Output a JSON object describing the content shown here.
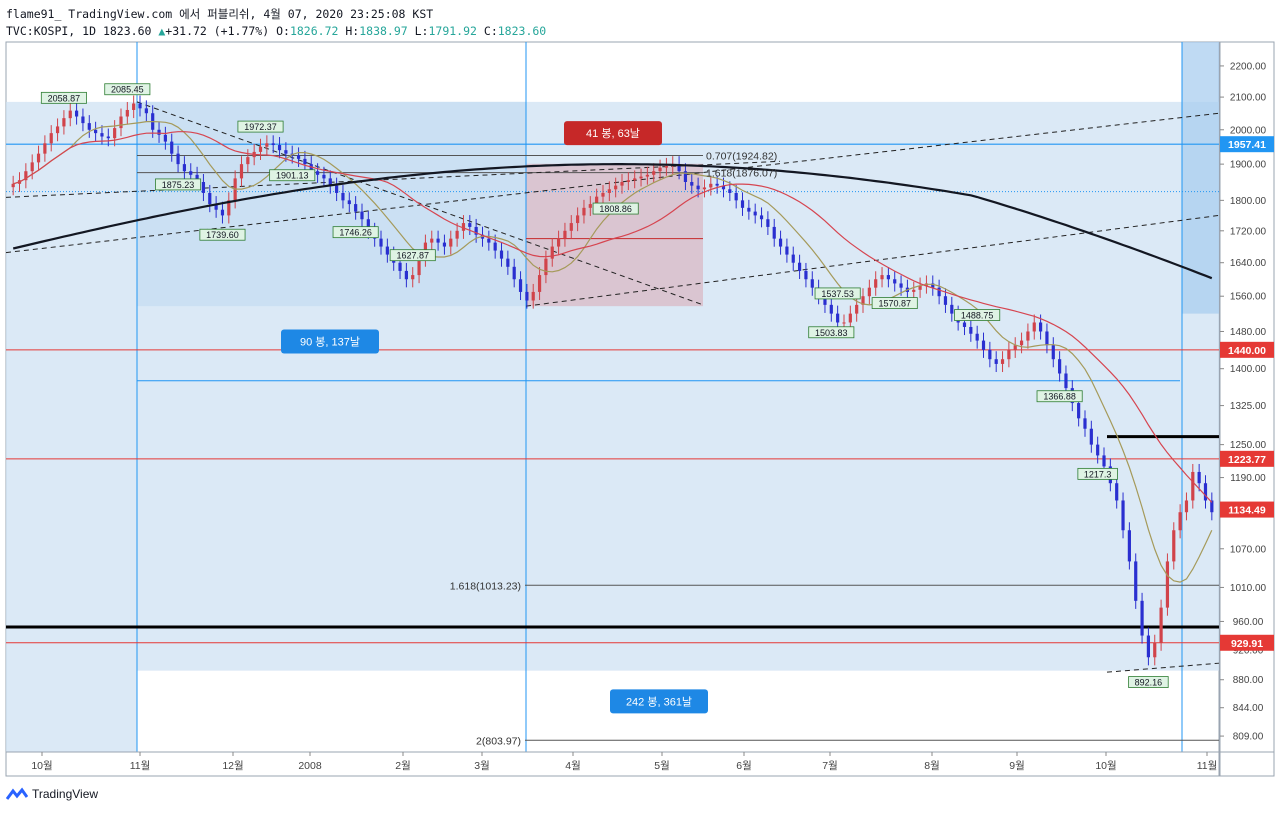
{
  "header": {
    "line1": "flame91_ TradingView.com 에서 퍼블리쉬, 4월 07, 2020 23:25:08 KST",
    "symbol": "TVC:KOSPI, 1D",
    "last": "1823.60",
    "change": "+31.72 (+1.77%)",
    "o_label": "O:",
    "o": "1826.72",
    "h_label": "H:",
    "h": "1838.97",
    "l_label": "L:",
    "l": "1791.92",
    "c_label": "C:",
    "c": "1823.60"
  },
  "footer": {
    "brand": "TradingView"
  },
  "colors": {
    "up": "#d1434a",
    "down": "#2a2fd0",
    "zone_blue": "#cfe1f3",
    "zone_pink": "#d9b8c4",
    "ma_long": "#131722",
    "ma_mid": "#d64550",
    "ma_short": "#a59a5a",
    "axis_text": "#444"
  },
  "chart_data": {
    "type": "candlestick",
    "y_scale": "log",
    "ylim": [
      790,
      2280
    ],
    "y_ticks": [
      809,
      844,
      880,
      920,
      960,
      1010,
      1070,
      1130,
      1190,
      1250,
      1325,
      1400,
      1480,
      1560,
      1640,
      1720,
      1800,
      1900,
      2000,
      2100,
      2200
    ],
    "y_tick_labels": [
      "809.00",
      "844.00",
      "880.00",
      "920.00",
      "960.00",
      "1010.00",
      "1070.00",
      "1130.00",
      "1190.00",
      "1250.00",
      "1325.00",
      "1400.00",
      "1480.00",
      "1560.00",
      "1640.00",
      "1720.00",
      "1800.00",
      "1900.00",
      "2000.00",
      "2100.00",
      "2200.00"
    ],
    "x_labels": [
      "10월",
      "11월",
      "12월",
      "2008",
      "2월",
      "3월",
      "4월",
      "5월",
      "6월",
      "7월",
      "8월",
      "9월",
      "10월",
      "11월"
    ],
    "price_badges": [
      {
        "value": 1957.41,
        "label": "1957.41",
        "color": "#2196f3"
      },
      {
        "value": 1440.0,
        "label": "1440.00",
        "color": "#e53935"
      },
      {
        "value": 1223.77,
        "label": "1223.77",
        "color": "#e53935"
      },
      {
        "value": 1134.49,
        "label": "1134.49",
        "color": "#e53935"
      },
      {
        "value": 929.91,
        "label": "929.91",
        "color": "#e53935"
      }
    ],
    "price_labels": [
      {
        "value": 2058.87,
        "label": "2058.87"
      },
      {
        "value": 2085.45,
        "label": "2085.45"
      },
      {
        "value": 1875.23,
        "label": "1875.23"
      },
      {
        "value": 1972.37,
        "label": "1972.37"
      },
      {
        "value": 1808.86,
        "label": "1808.86"
      },
      {
        "value": 1746.26,
        "label": "1746.26"
      },
      {
        "value": 1739.6,
        "label": "1739.60"
      },
      {
        "value": 1570.87,
        "label": "1570.87"
      },
      {
        "value": 1537.53,
        "label": "1537.53"
      },
      {
        "value": 1901.13,
        "label": "1901.13"
      },
      {
        "value": 1627.87,
        "label": "1627.87"
      },
      {
        "value": 1488.75,
        "label": "1488.75"
      },
      {
        "value": 1503.83,
        "label": "1503.83"
      },
      {
        "value": 1366.88,
        "label": "1366.88"
      },
      {
        "value": 1217.3,
        "label": "1217.3"
      },
      {
        "value": 892.16,
        "label": "892.16"
      }
    ],
    "fib_labels": [
      {
        "value": 1924.82,
        "label": "0.707(1924.82)"
      },
      {
        "value": 1876.07,
        "label": "1.618(1876.07)"
      },
      {
        "value": 1013.23,
        "label": "1.618(1013.23)"
      },
      {
        "value": 803.97,
        "label": "2(803.97)"
      }
    ],
    "range_boxes": [
      {
        "label": "90 봉, 137날"
      },
      {
        "label": "41 봉, 63날"
      },
      {
        "label": "242 봉, 361날"
      }
    ],
    "candles_close": [
      1845,
      1855,
      1880,
      1905,
      1930,
      1960,
      1990,
      2010,
      2035,
      2058,
      2040,
      2020,
      2000,
      1990,
      1980,
      1975,
      2005,
      2040,
      2060,
      2080,
      2065,
      2050,
      2000,
      1985,
      1965,
      1930,
      1900,
      1880,
      1870,
      1850,
      1820,
      1790,
      1775,
      1760,
      1800,
      1860,
      1900,
      1920,
      1935,
      1950,
      1960,
      1955,
      1940,
      1930,
      1925,
      1915,
      1900,
      1880,
      1870,
      1860,
      1840,
      1820,
      1800,
      1790,
      1770,
      1750,
      1720,
      1700,
      1680,
      1660,
      1640,
      1620,
      1600,
      1610,
      1650,
      1690,
      1700,
      1690,
      1680,
      1700,
      1720,
      1740,
      1730,
      1710,
      1700,
      1690,
      1670,
      1650,
      1630,
      1600,
      1570,
      1550,
      1570,
      1610,
      1650,
      1680,
      1700,
      1720,
      1740,
      1760,
      1780,
      1790,
      1810,
      1820,
      1830,
      1840,
      1850,
      1855,
      1860,
      1865,
      1870,
      1880,
      1890,
      1895,
      1900,
      1880,
      1850,
      1840,
      1830,
      1835,
      1845,
      1840,
      1830,
      1820,
      1800,
      1780,
      1770,
      1760,
      1750,
      1730,
      1700,
      1680,
      1660,
      1640,
      1620,
      1600,
      1580,
      1560,
      1540,
      1520,
      1500,
      1500,
      1520,
      1540,
      1560,
      1580,
      1600,
      1610,
      1600,
      1590,
      1580,
      1570,
      1575,
      1585,
      1590,
      1580,
      1560,
      1540,
      1520,
      1500,
      1490,
      1475,
      1460,
      1440,
      1420,
      1410,
      1420,
      1440,
      1450,
      1460,
      1480,
      1500,
      1480,
      1450,
      1420,
      1390,
      1360,
      1330,
      1300,
      1280,
      1250,
      1230,
      1210,
      1180,
      1150,
      1100,
      1050,
      990,
      940,
      910,
      930,
      980,
      1050,
      1100,
      1130,
      1150,
      1200,
      1180,
      1150,
      1130
    ]
  }
}
